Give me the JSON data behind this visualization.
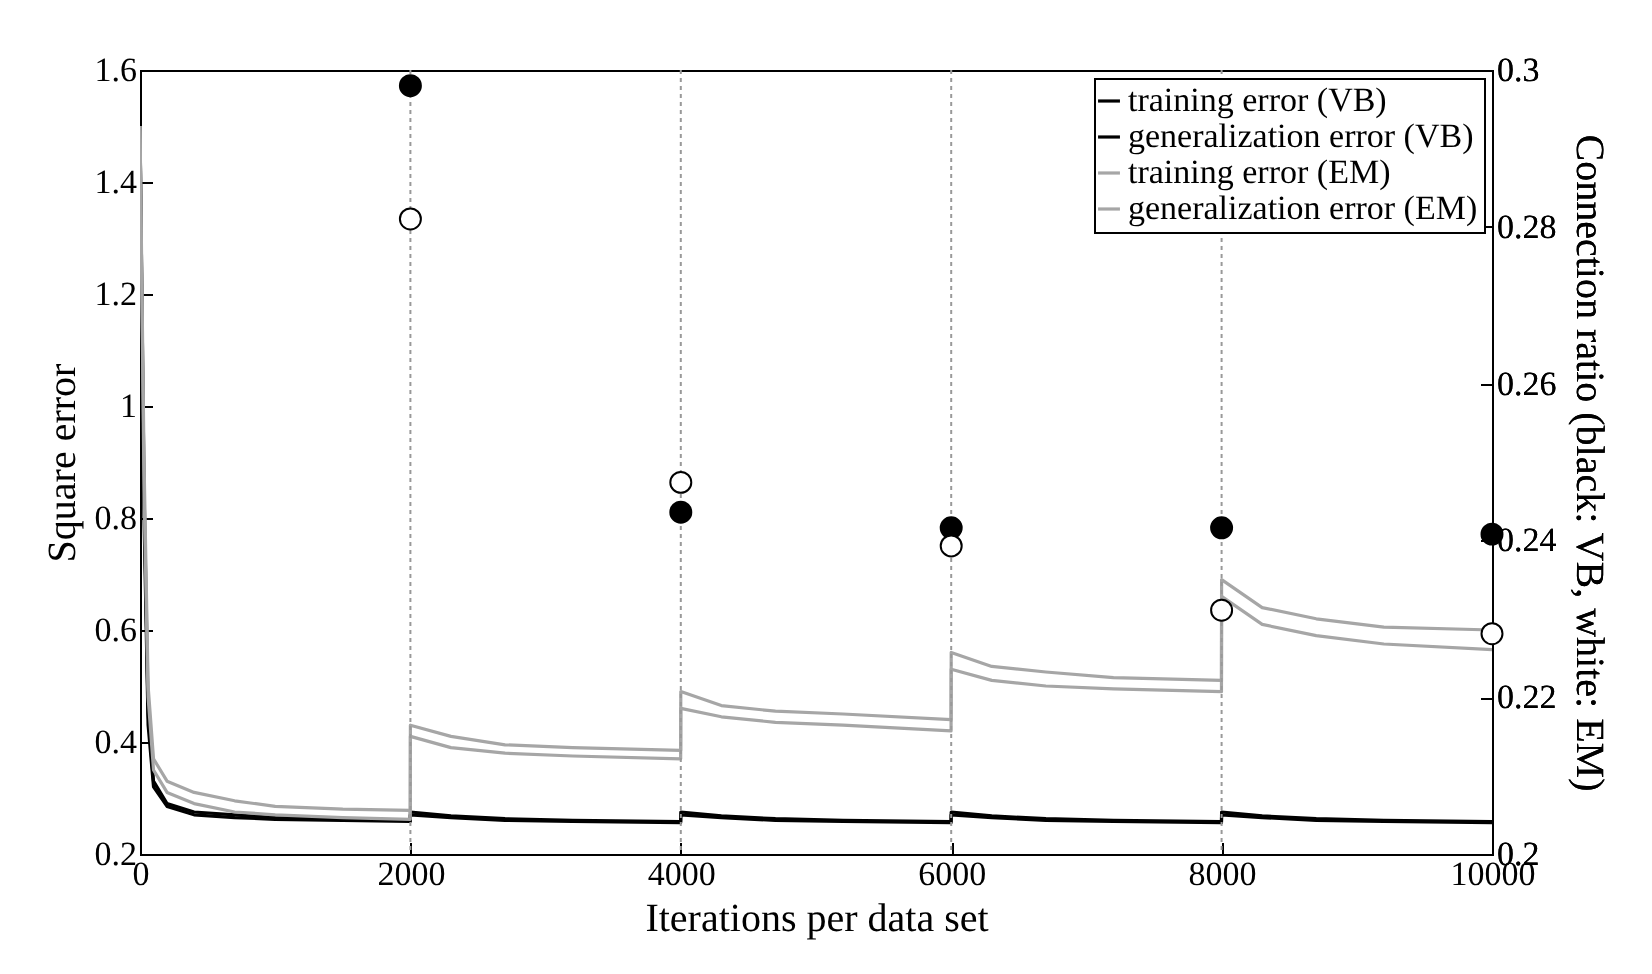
{
  "chart_data": {
    "type": "line",
    "xlabel": "Iterations per data set",
    "ylabel": "Square error",
    "y2label": "Connection ratio (black: VB, white: EM)",
    "xlim": [
      0,
      10000
    ],
    "xticks": [
      0,
      2000,
      4000,
      6000,
      8000,
      10000
    ],
    "ylim": [
      0.2,
      1.6
    ],
    "yticks": [
      0.2,
      0.4,
      0.6,
      0.8,
      1,
      1.2,
      1.4,
      1.6
    ],
    "y2lim": [
      0.2,
      0.3
    ],
    "y2ticks": [
      0.2,
      0.22,
      0.24,
      0.26,
      0.28,
      0.3
    ],
    "legend": "top right",
    "grid": false,
    "line_style": "solid",
    "ref_lines": [
      {
        "axis": "x",
        "value": 2000,
        "color": "#999999",
        "line_style": "dotted"
      },
      {
        "axis": "x",
        "value": 4000,
        "color": "#999999",
        "line_style": "dotted"
      },
      {
        "axis": "x",
        "value": 6000,
        "color": "#999999",
        "line_style": "dotted"
      },
      {
        "axis": "x",
        "value": 8000,
        "color": "#999999",
        "line_style": "dotted"
      }
    ],
    "series": [
      {
        "name": "training error (VB)",
        "color": "#000000",
        "x": [
          0,
          30,
          60,
          100,
          200,
          400,
          700,
          1000,
          1500,
          1999,
          2000,
          2300,
          2700,
          3200,
          3999,
          4000,
          4300,
          4700,
          5200,
          5999,
          6000,
          6300,
          6700,
          7200,
          7999,
          8000,
          8300,
          8700,
          9200,
          10000
        ],
        "values": [
          1.5,
          0.8,
          0.43,
          0.32,
          0.285,
          0.27,
          0.265,
          0.262,
          0.26,
          0.258,
          0.27,
          0.265,
          0.26,
          0.258,
          0.256,
          0.27,
          0.265,
          0.26,
          0.258,
          0.256,
          0.27,
          0.265,
          0.26,
          0.258,
          0.256,
          0.27,
          0.265,
          0.26,
          0.258,
          0.256
        ]
      },
      {
        "name": "generalization error (VB)",
        "color": "#000000",
        "x": [
          0,
          30,
          60,
          100,
          200,
          400,
          700,
          1000,
          1500,
          1999,
          2000,
          2300,
          2700,
          3200,
          3999,
          4000,
          4300,
          4700,
          5200,
          5999,
          6000,
          6300,
          6700,
          7200,
          7999,
          8000,
          8300,
          8700,
          9200,
          10000
        ],
        "values": [
          1.5,
          0.85,
          0.45,
          0.33,
          0.29,
          0.275,
          0.27,
          0.265,
          0.262,
          0.26,
          0.275,
          0.268,
          0.263,
          0.26,
          0.258,
          0.275,
          0.268,
          0.263,
          0.26,
          0.258,
          0.275,
          0.268,
          0.263,
          0.26,
          0.258,
          0.275,
          0.268,
          0.263,
          0.26,
          0.258
        ]
      },
      {
        "name": "training error (EM)",
        "color": "#a6a6a6",
        "x": [
          0,
          30,
          60,
          100,
          200,
          400,
          700,
          1000,
          1500,
          1999,
          2000,
          2300,
          2700,
          3200,
          3999,
          4000,
          4300,
          4700,
          5200,
          5999,
          6000,
          6300,
          6700,
          7200,
          7999,
          8000,
          8300,
          8700,
          9200,
          10000
        ],
        "values": [
          1.5,
          0.85,
          0.48,
          0.35,
          0.31,
          0.29,
          0.275,
          0.27,
          0.265,
          0.262,
          0.41,
          0.39,
          0.38,
          0.375,
          0.37,
          0.46,
          0.445,
          0.435,
          0.43,
          0.42,
          0.53,
          0.51,
          0.5,
          0.495,
          0.49,
          0.66,
          0.61,
          0.59,
          0.575,
          0.565
        ]
      },
      {
        "name": "generalization error (EM)",
        "color": "#a6a6a6",
        "x": [
          0,
          30,
          60,
          100,
          200,
          400,
          700,
          1000,
          1500,
          1999,
          2000,
          2300,
          2700,
          3200,
          3999,
          4000,
          4300,
          4700,
          5200,
          5999,
          6000,
          6300,
          6700,
          7200,
          7999,
          8000,
          8300,
          8700,
          9200,
          10000
        ],
        "values": [
          1.5,
          0.9,
          0.5,
          0.37,
          0.33,
          0.31,
          0.295,
          0.285,
          0.28,
          0.278,
          0.43,
          0.41,
          0.395,
          0.39,
          0.385,
          0.49,
          0.465,
          0.455,
          0.45,
          0.44,
          0.56,
          0.535,
          0.525,
          0.515,
          0.51,
          0.69,
          0.64,
          0.62,
          0.605,
          0.6
        ]
      },
      {
        "type": "scatter",
        "axis": "y2",
        "marker": "circle",
        "color": "#000000",
        "x": [
          2000,
          4000,
          6000,
          8000,
          10000
        ],
        "values": [
          0.298,
          0.2436,
          0.2416,
          0.2416,
          0.2408
        ]
      },
      {
        "type": "scatter",
        "axis": "y2",
        "marker": "circle",
        "color": "#ffffff",
        "x": [
          2000,
          4000,
          6000,
          8000,
          10000
        ],
        "values": [
          0.281,
          0.2474,
          0.2393,
          0.2311,
          0.2281
        ]
      }
    ]
  }
}
